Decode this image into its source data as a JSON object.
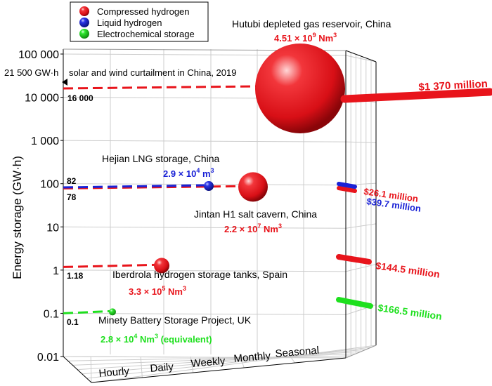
{
  "chart_data": {
    "type": "scatter",
    "ylabel": "Energy storage (GW·h)",
    "y_scale": "log",
    "ylim": [
      0.01,
      100000
    ],
    "y_ticks": [
      {
        "value": 100000,
        "label": "100 000"
      },
      {
        "value": 10000,
        "label": "10 000"
      },
      {
        "value": 1000,
        "label": "1 000"
      },
      {
        "value": 100,
        "label": "100"
      },
      {
        "value": 10,
        "label": "10"
      },
      {
        "value": 1,
        "label": "1"
      },
      {
        "value": 0.1,
        "label": "0.1"
      },
      {
        "value": 0.01,
        "label": "0.01"
      }
    ],
    "categories": [
      "Hourly",
      "Daily",
      "Weekly",
      "Monthly",
      "Seasonal"
    ],
    "legend": {
      "placement": "top-left",
      "items": [
        {
          "name": "Compressed hydrogen",
          "color": "#e8141b"
        },
        {
          "name": "Liquid hydrogen",
          "color": "#1a22d6"
        },
        {
          "name": "Electrochemical storage",
          "color": "#1ee01e"
        }
      ]
    },
    "points": [
      {
        "name": "Hutubi depleted gas reservoir, China",
        "series": "Compressed hydrogen",
        "duration": "Seasonal",
        "y": 16000,
        "y_label": "16 000",
        "volume": "4.51 × 10",
        "volume_exp": "9",
        "volume_unit": " Nm",
        "volume_unit_exp": "3",
        "cost": "$1 370 million",
        "color": "#e8141b"
      },
      {
        "name": "Jintan H1 salt cavern, China",
        "series": "Compressed hydrogen",
        "duration": "Monthly",
        "y": 78,
        "y_label": "78",
        "volume": "2.2 × 10",
        "volume_exp": "7",
        "volume_unit": " Nm",
        "volume_unit_exp": "3",
        "cost": "$26.1 million",
        "color": "#e8141b"
      },
      {
        "name": "Hejian LNG storage, China",
        "series": "Liquid hydrogen",
        "duration": "Weekly",
        "y": 82,
        "y_label": "82",
        "volume": "2.9 × 10",
        "volume_exp": "4",
        "volume_unit": " m",
        "volume_unit_exp": "3",
        "cost": "$39.7 million",
        "color": "#1a22d6"
      },
      {
        "name": "Iberdrola hydrogen storage tanks, Spain",
        "series": "Compressed hydrogen",
        "duration": "Daily",
        "y": 1.18,
        "y_label": "1.18",
        "volume": "3.3 × 10",
        "volume_exp": "5",
        "volume_unit": " Nm",
        "volume_unit_exp": "3",
        "cost": "$144.5 million",
        "color": "#e8141b"
      },
      {
        "name": "Minety Battery Storage Project, UK",
        "series": "Electrochemical storage",
        "duration": "Hourly",
        "y": 0.1,
        "y_label": "0.1",
        "volume": "2.8 × 10",
        "volume_exp": "4",
        "volume_unit": " Nm",
        "volume_unit_exp": "3",
        "volume_suffix": " (equivalent)",
        "cost": "$166.5 million",
        "color": "#1ee01e"
      }
    ],
    "annotations": [
      {
        "value_label": "21 500 GW·h",
        "text": "solar and wind curtailment in China, 2019",
        "y": 21500
      }
    ],
    "grid": true
  }
}
